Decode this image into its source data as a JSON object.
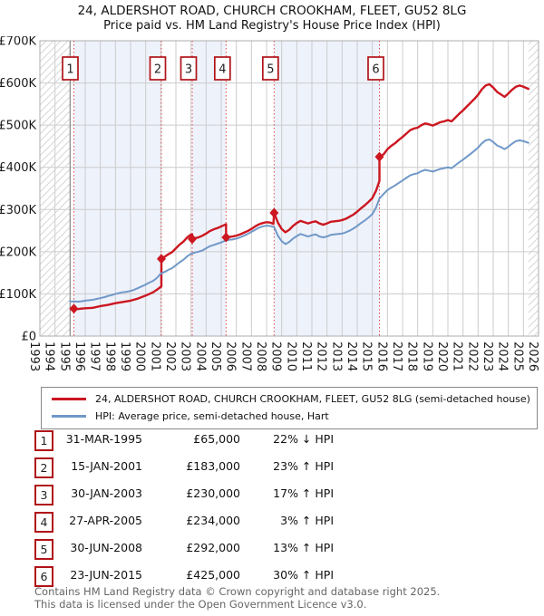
{
  "title": {
    "main": "24, ALDERSHOT ROAD, CHURCH CROOKHAM, FLEET, GU52 8LG",
    "sub": "Price paid vs. HM Land Registry's House Price Index (HPI)"
  },
  "legend": {
    "entries": [
      {
        "label": "24, ALDERSHOT ROAD, CHURCH CROOKHAM, FLEET, GU52 8LG (semi-detached house)",
        "color": "#cc1620"
      },
      {
        "label": "HPI: Average price, semi-detached house, Hart",
        "color": "#7098c8"
      }
    ]
  },
  "transactions": [
    {
      "num": "1",
      "date": "31-MAR-1995",
      "price": "£65,000",
      "hpi_diff": "22% ↓ HPI",
      "year_frac": 1995.25,
      "value_k": 65
    },
    {
      "num": "2",
      "date": "15-JAN-2001",
      "price": "£183,000",
      "hpi_diff": "23% ↑ HPI",
      "year_frac": 2001.04,
      "value_k": 183
    },
    {
      "num": "3",
      "date": "30-JAN-2003",
      "price": "£230,000",
      "hpi_diff": "17% ↑ HPI",
      "year_frac": 2003.08,
      "value_k": 230
    },
    {
      "num": "4",
      "date": "27-APR-2005",
      "price": "£234,000",
      "hpi_diff": "3% ↑ HPI",
      "year_frac": 2005.32,
      "value_k": 234
    },
    {
      "num": "5",
      "date": "30-JUN-2008",
      "price": "£292,000",
      "hpi_diff": "13% ↑ HPI",
      "year_frac": 2008.5,
      "value_k": 292
    },
    {
      "num": "6",
      "date": "23-JUN-2015",
      "price": "£425,000",
      "hpi_diff": "30% ↑ HPI",
      "year_frac": 2015.47,
      "value_k": 425
    }
  ],
  "footer": {
    "line1": "Contains HM Land Registry data © Crown copyright and database right 2025.",
    "line2": "This data is licensed under the Open Government Licence v3.0."
  },
  "chart_data": {
    "type": "line",
    "title": "24, ALDERSHOT ROAD, CHURCH CROOKHAM, FLEET, GU52 8LG",
    "subtitle": "Price paid vs. HM Land Registry's House Price Index (HPI)",
    "xlabel": "",
    "ylabel": "",
    "x_axis": {
      "min": 1993,
      "max": 2026,
      "tick_years": [
        1993,
        1994,
        1995,
        1996,
        1997,
        1998,
        1999,
        2000,
        2001,
        2002,
        2003,
        2004,
        2005,
        2006,
        2007,
        2008,
        2009,
        2010,
        2011,
        2012,
        2013,
        2014,
        2015,
        2016,
        2017,
        2018,
        2019,
        2020,
        2021,
        2022,
        2023,
        2024,
        2025,
        2026
      ]
    },
    "y_axis": {
      "min_k": 0,
      "max_k": 700,
      "tick_values_k": [
        0,
        100,
        200,
        300,
        400,
        500,
        600,
        700
      ],
      "tick_labels": [
        "£0",
        "£100K",
        "£200K",
        "£300K",
        "£400K",
        "£500K",
        "£600K",
        "£700K"
      ]
    },
    "grid": true,
    "legend_position": "below",
    "colors": {
      "price_line": "#cc1620",
      "hpi_line": "#7098c8",
      "band": "#eef2fb",
      "grid": "#cccccc",
      "frame": "#adadad",
      "hatch": "#d6d6d6",
      "sale_line": "#e14b4b",
      "marker_border": "#b01318",
      "text": "#1a1a1a"
    },
    "shaded_bands": [
      [
        1995.25,
        2001.04
      ],
      [
        2003.08,
        2005.32
      ],
      [
        2008.5,
        2015.47
      ]
    ],
    "hatched_bands": [
      [
        1993.0,
        1995.0
      ],
      [
        2025.33,
        2026.0
      ]
    ],
    "data_start_year": 1995.0,
    "sale_points": [
      [
        1995.25,
        65
      ],
      [
        2001.04,
        183
      ],
      [
        2003.08,
        230
      ],
      [
        2005.32,
        234
      ],
      [
        2008.5,
        292
      ],
      [
        2015.47,
        425
      ]
    ],
    "sale_labels": [
      "1",
      "2",
      "3",
      "4",
      "5",
      "6"
    ],
    "series": [
      {
        "name": "24, ALDERSHOT ROAD, CHURCH CROOKHAM, FLEET, GU52 8LG (semi-detached house)",
        "color": "#cc1620",
        "width": 2.4,
        "units": "GBP thousands",
        "points": [
          [
            1995.25,
            65
          ],
          [
            1995.5,
            64
          ],
          [
            1995.75,
            65
          ],
          [
            1996.0,
            66
          ],
          [
            1996.25,
            66.5
          ],
          [
            1996.5,
            67
          ],
          [
            1996.75,
            69
          ],
          [
            1997.0,
            71
          ],
          [
            1997.5,
            74
          ],
          [
            1998.0,
            78
          ],
          [
            1998.5,
            81
          ],
          [
            1999.0,
            84
          ],
          [
            1999.5,
            89
          ],
          [
            2000.0,
            96
          ],
          [
            2000.5,
            104
          ],
          [
            2000.75,
            110
          ],
          [
            2001.04,
            118
          ],
          [
            2001.04,
            183
          ],
          [
            2001.25,
            188
          ],
          [
            2001.5,
            194
          ],
          [
            2001.75,
            199
          ],
          [
            2002.0,
            208
          ],
          [
            2002.25,
            217
          ],
          [
            2002.5,
            224
          ],
          [
            2002.75,
            234
          ],
          [
            2003.0,
            241
          ],
          [
            2003.08,
            241
          ],
          [
            2003.08,
            230
          ],
          [
            2003.25,
            232
          ],
          [
            2003.5,
            234
          ],
          [
            2003.75,
            238
          ],
          [
            2004.0,
            243
          ],
          [
            2004.25,
            249
          ],
          [
            2004.5,
            253
          ],
          [
            2004.75,
            256
          ],
          [
            2005.0,
            260
          ],
          [
            2005.25,
            264
          ],
          [
            2005.32,
            265
          ],
          [
            2005.32,
            234
          ],
          [
            2005.5,
            235
          ],
          [
            2005.75,
            236
          ],
          [
            2006.0,
            238
          ],
          [
            2006.25,
            241
          ],
          [
            2006.5,
            245
          ],
          [
            2006.75,
            249
          ],
          [
            2007.0,
            254
          ],
          [
            2007.25,
            260
          ],
          [
            2007.5,
            265
          ],
          [
            2007.75,
            268
          ],
          [
            2008.0,
            270
          ],
          [
            2008.25,
            269
          ],
          [
            2008.45,
            266
          ],
          [
            2008.5,
            292
          ],
          [
            2008.75,
            269
          ],
          [
            2009.0,
            254
          ],
          [
            2009.25,
            246
          ],
          [
            2009.5,
            252
          ],
          [
            2009.75,
            261
          ],
          [
            2010.0,
            268
          ],
          [
            2010.25,
            273
          ],
          [
            2010.5,
            270
          ],
          [
            2010.75,
            267
          ],
          [
            2011.0,
            270
          ],
          [
            2011.25,
            272
          ],
          [
            2011.5,
            267
          ],
          [
            2011.75,
            264
          ],
          [
            2012.0,
            267
          ],
          [
            2012.25,
            271
          ],
          [
            2012.5,
            272
          ],
          [
            2012.75,
            273
          ],
          [
            2013.0,
            275
          ],
          [
            2013.25,
            278
          ],
          [
            2013.5,
            283
          ],
          [
            2013.75,
            288
          ],
          [
            2014.0,
            295
          ],
          [
            2014.25,
            303
          ],
          [
            2014.5,
            310
          ],
          [
            2014.75,
            318
          ],
          [
            2015.0,
            327
          ],
          [
            2015.25,
            345
          ],
          [
            2015.47,
            368
          ],
          [
            2015.47,
            425
          ],
          [
            2015.75,
            431
          ],
          [
            2016.0,
            443
          ],
          [
            2016.25,
            451
          ],
          [
            2016.5,
            457
          ],
          [
            2016.75,
            465
          ],
          [
            2017.0,
            472
          ],
          [
            2017.25,
            480
          ],
          [
            2017.5,
            488
          ],
          [
            2017.75,
            492
          ],
          [
            2018.0,
            494
          ],
          [
            2018.25,
            500
          ],
          [
            2018.5,
            504
          ],
          [
            2018.75,
            502
          ],
          [
            2019.0,
            499
          ],
          [
            2019.25,
            503
          ],
          [
            2019.5,
            507
          ],
          [
            2019.75,
            509
          ],
          [
            2020.0,
            512
          ],
          [
            2020.25,
            509
          ],
          [
            2020.5,
            518
          ],
          [
            2020.75,
            527
          ],
          [
            2021.0,
            535
          ],
          [
            2021.25,
            544
          ],
          [
            2021.5,
            553
          ],
          [
            2021.75,
            562
          ],
          [
            2022.0,
            572
          ],
          [
            2022.25,
            585
          ],
          [
            2022.5,
            594
          ],
          [
            2022.75,
            597
          ],
          [
            2023.0,
            589
          ],
          [
            2023.25,
            579
          ],
          [
            2023.5,
            573
          ],
          [
            2023.75,
            567
          ],
          [
            2024.0,
            575
          ],
          [
            2024.25,
            584
          ],
          [
            2024.5,
            591
          ],
          [
            2024.75,
            594
          ],
          [
            2025.0,
            591
          ],
          [
            2025.33,
            586
          ]
        ]
      },
      {
        "name": "HPI: Average price, semi-detached house, Hart",
        "color": "#7098c8",
        "width": 2,
        "units": "GBP thousands",
        "points": [
          [
            1995.0,
            82
          ],
          [
            1995.25,
            82.5
          ],
          [
            1995.5,
            81.5
          ],
          [
            1995.75,
            82.5
          ],
          [
            1996.0,
            84
          ],
          [
            1996.25,
            85
          ],
          [
            1996.5,
            86
          ],
          [
            1996.75,
            88
          ],
          [
            1997.0,
            90
          ],
          [
            1997.25,
            92
          ],
          [
            1997.5,
            95
          ],
          [
            1997.75,
            97
          ],
          [
            1998.0,
            100
          ],
          [
            1998.25,
            102
          ],
          [
            1998.5,
            104
          ],
          [
            1998.75,
            105
          ],
          [
            1999.0,
            107
          ],
          [
            1999.25,
            110
          ],
          [
            1999.5,
            114
          ],
          [
            1999.75,
            118
          ],
          [
            2000.0,
            122
          ],
          [
            2000.25,
            127
          ],
          [
            2000.5,
            131
          ],
          [
            2000.75,
            138
          ],
          [
            2001.0,
            148
          ],
          [
            2001.25,
            152
          ],
          [
            2001.5,
            157
          ],
          [
            2001.75,
            161
          ],
          [
            2002.0,
            168
          ],
          [
            2002.25,
            175
          ],
          [
            2002.5,
            181
          ],
          [
            2002.75,
            189
          ],
          [
            2003.0,
            195
          ],
          [
            2003.25,
            198
          ],
          [
            2003.5,
            200
          ],
          [
            2003.75,
            203
          ],
          [
            2004.0,
            208
          ],
          [
            2004.25,
            213
          ],
          [
            2004.5,
            216
          ],
          [
            2004.75,
            219
          ],
          [
            2005.0,
            222
          ],
          [
            2005.25,
            226
          ],
          [
            2005.5,
            228
          ],
          [
            2005.75,
            229
          ],
          [
            2006.0,
            231
          ],
          [
            2006.25,
            234
          ],
          [
            2006.5,
            238
          ],
          [
            2006.75,
            242
          ],
          [
            2007.0,
            247
          ],
          [
            2007.25,
            252
          ],
          [
            2007.5,
            257
          ],
          [
            2007.75,
            260
          ],
          [
            2008.0,
            262
          ],
          [
            2008.25,
            261
          ],
          [
            2008.5,
            258
          ],
          [
            2008.75,
            238
          ],
          [
            2009.0,
            225
          ],
          [
            2009.25,
            218
          ],
          [
            2009.5,
            223
          ],
          [
            2009.75,
            231
          ],
          [
            2010.0,
            237
          ],
          [
            2010.25,
            242
          ],
          [
            2010.5,
            239
          ],
          [
            2010.75,
            236
          ],
          [
            2011.0,
            239
          ],
          [
            2011.25,
            241
          ],
          [
            2011.5,
            236
          ],
          [
            2011.75,
            234
          ],
          [
            2012.0,
            236
          ],
          [
            2012.25,
            240
          ],
          [
            2012.5,
            241
          ],
          [
            2012.75,
            242
          ],
          [
            2013.0,
            243
          ],
          [
            2013.25,
            246
          ],
          [
            2013.5,
            250
          ],
          [
            2013.75,
            255
          ],
          [
            2014.0,
            261
          ],
          [
            2014.25,
            268
          ],
          [
            2014.5,
            274
          ],
          [
            2014.75,
            281
          ],
          [
            2015.0,
            289
          ],
          [
            2015.25,
            305
          ],
          [
            2015.47,
            326
          ],
          [
            2015.75,
            337
          ],
          [
            2016.0,
            346
          ],
          [
            2016.25,
            352
          ],
          [
            2016.5,
            357
          ],
          [
            2016.75,
            363
          ],
          [
            2017.0,
            369
          ],
          [
            2017.25,
            375
          ],
          [
            2017.5,
            381
          ],
          [
            2017.75,
            384
          ],
          [
            2018.0,
            386
          ],
          [
            2018.25,
            391
          ],
          [
            2018.5,
            394
          ],
          [
            2018.75,
            392
          ],
          [
            2019.0,
            390
          ],
          [
            2019.25,
            393
          ],
          [
            2019.5,
            396
          ],
          [
            2019.75,
            398
          ],
          [
            2020.0,
            400
          ],
          [
            2020.25,
            398
          ],
          [
            2020.5,
            405
          ],
          [
            2020.75,
            412
          ],
          [
            2021.0,
            418
          ],
          [
            2021.25,
            425
          ],
          [
            2021.5,
            432
          ],
          [
            2021.75,
            439
          ],
          [
            2022.0,
            447
          ],
          [
            2022.25,
            457
          ],
          [
            2022.5,
            464
          ],
          [
            2022.75,
            466
          ],
          [
            2023.0,
            460
          ],
          [
            2023.25,
            452
          ],
          [
            2023.5,
            448
          ],
          [
            2023.75,
            443
          ],
          [
            2024.0,
            449
          ],
          [
            2024.25,
            456
          ],
          [
            2024.5,
            462
          ],
          [
            2024.75,
            464
          ],
          [
            2025.0,
            462
          ],
          [
            2025.33,
            458
          ]
        ]
      }
    ]
  }
}
